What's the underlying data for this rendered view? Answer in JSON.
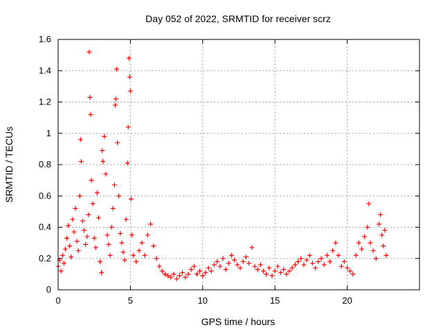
{
  "chart_data": {
    "type": "scatter",
    "title": "Day 052 of 2022, SRMTID for receiver scrz",
    "xlabel": "GPS time / hours",
    "ylabel": "SRMTID / TECUs",
    "xlim": [
      0,
      25
    ],
    "ylim": [
      0,
      1.6
    ],
    "xticks": [
      0,
      5,
      10,
      15,
      20
    ],
    "xtick_labels": [
      "0",
      "5",
      "10",
      "15",
      "20"
    ],
    "yticks": [
      0,
      0.2,
      0.4,
      0.6,
      0.8,
      1.0,
      1.2,
      1.4,
      1.6
    ],
    "ytick_labels": [
      "0",
      "0.2",
      "0.4",
      "0.6",
      "0.8",
      "1",
      "1.2",
      "1.4",
      "1.6"
    ],
    "grid": true,
    "marker": "+",
    "color": "#ff0000",
    "series": [
      {
        "name": "SRMTID",
        "points": [
          [
            0.0,
            0.15
          ],
          [
            0.1,
            0.19
          ],
          [
            0.2,
            0.12
          ],
          [
            0.3,
            0.22
          ],
          [
            0.4,
            0.17
          ],
          [
            0.5,
            0.26
          ],
          [
            0.6,
            0.33
          ],
          [
            0.7,
            0.41
          ],
          [
            0.8,
            0.28
          ],
          [
            0.9,
            0.21
          ],
          [
            1.0,
            0.45
          ],
          [
            1.1,
            0.37
          ],
          [
            1.2,
            0.52
          ],
          [
            1.3,
            0.31
          ],
          [
            1.4,
            0.25
          ],
          [
            1.5,
            0.6
          ],
          [
            1.55,
            0.96
          ],
          [
            1.6,
            0.82
          ],
          [
            1.7,
            0.44
          ],
          [
            1.8,
            0.38
          ],
          [
            1.9,
            0.29
          ],
          [
            2.0,
            0.34
          ],
          [
            2.1,
            0.48
          ],
          [
            2.15,
            1.52
          ],
          [
            2.2,
            1.23
          ],
          [
            2.25,
            1.12
          ],
          [
            2.3,
            0.7
          ],
          [
            2.4,
            0.55
          ],
          [
            2.5,
            0.33
          ],
          [
            2.6,
            0.27
          ],
          [
            2.7,
            0.62
          ],
          [
            2.8,
            0.46
          ],
          [
            2.9,
            0.18
          ],
          [
            3.0,
            0.11
          ],
          [
            3.05,
            0.89
          ],
          [
            3.1,
            0.82
          ],
          [
            3.2,
            0.98
          ],
          [
            3.3,
            0.74
          ],
          [
            3.4,
            0.35
          ],
          [
            3.5,
            0.29
          ],
          [
            3.6,
            0.22
          ],
          [
            3.7,
            0.4
          ],
          [
            3.8,
            0.52
          ],
          [
            3.9,
            0.67
          ],
          [
            3.95,
            1.18
          ],
          [
            4.0,
            1.22
          ],
          [
            4.05,
            1.41
          ],
          [
            4.1,
            0.94
          ],
          [
            4.2,
            0.6
          ],
          [
            4.3,
            0.36
          ],
          [
            4.4,
            0.3
          ],
          [
            4.5,
            0.24
          ],
          [
            4.6,
            0.19
          ],
          [
            4.7,
            0.45
          ],
          [
            4.8,
            0.81
          ],
          [
            4.85,
            1.04
          ],
          [
            4.9,
            1.48
          ],
          [
            4.95,
            1.36
          ],
          [
            5.0,
            1.27
          ],
          [
            5.05,
            0.58
          ],
          [
            5.1,
            0.35
          ],
          [
            5.2,
            0.22
          ],
          [
            5.4,
            0.18
          ],
          [
            5.6,
            0.25
          ],
          [
            5.8,
            0.3
          ],
          [
            6.0,
            0.22
          ],
          [
            6.2,
            0.35
          ],
          [
            6.4,
            0.42
          ],
          [
            6.6,
            0.28
          ],
          [
            6.8,
            0.2
          ],
          [
            7.0,
            0.15
          ],
          [
            7.2,
            0.12
          ],
          [
            7.4,
            0.1
          ],
          [
            7.6,
            0.09
          ],
          [
            7.8,
            0.08
          ],
          [
            8.0,
            0.1
          ],
          [
            8.2,
            0.07
          ],
          [
            8.4,
            0.09
          ],
          [
            8.6,
            0.11
          ],
          [
            8.8,
            0.08
          ],
          [
            9.0,
            0.1
          ],
          [
            9.2,
            0.13
          ],
          [
            9.4,
            0.15
          ],
          [
            9.6,
            0.1
          ],
          [
            9.8,
            0.12
          ],
          [
            10.0,
            0.09
          ],
          [
            10.2,
            0.11
          ],
          [
            10.4,
            0.14
          ],
          [
            10.6,
            0.12
          ],
          [
            10.8,
            0.16
          ],
          [
            11.0,
            0.18
          ],
          [
            11.2,
            0.15
          ],
          [
            11.4,
            0.2
          ],
          [
            11.6,
            0.13
          ],
          [
            11.8,
            0.17
          ],
          [
            12.0,
            0.22
          ],
          [
            12.2,
            0.19
          ],
          [
            12.4,
            0.16
          ],
          [
            12.6,
            0.14
          ],
          [
            12.8,
            0.18
          ],
          [
            13.0,
            0.21
          ],
          [
            13.2,
            0.17
          ],
          [
            13.4,
            0.27
          ],
          [
            13.6,
            0.15
          ],
          [
            13.8,
            0.13
          ],
          [
            14.0,
            0.16
          ],
          [
            14.2,
            0.12
          ],
          [
            14.4,
            0.1
          ],
          [
            14.6,
            0.14
          ],
          [
            14.8,
            0.09
          ],
          [
            15.0,
            0.12
          ],
          [
            15.2,
            0.15
          ],
          [
            15.4,
            0.11
          ],
          [
            15.6,
            0.13
          ],
          [
            15.8,
            0.1
          ],
          [
            16.0,
            0.12
          ],
          [
            16.2,
            0.14
          ],
          [
            16.4,
            0.16
          ],
          [
            16.6,
            0.18
          ],
          [
            16.8,
            0.2
          ],
          [
            17.0,
            0.16
          ],
          [
            17.2,
            0.19
          ],
          [
            17.4,
            0.22
          ],
          [
            17.6,
            0.17
          ],
          [
            17.8,
            0.14
          ],
          [
            18.0,
            0.18
          ],
          [
            18.2,
            0.2
          ],
          [
            18.4,
            0.16
          ],
          [
            18.6,
            0.22
          ],
          [
            18.8,
            0.18
          ],
          [
            19.0,
            0.25
          ],
          [
            19.2,
            0.3
          ],
          [
            19.4,
            0.22
          ],
          [
            19.6,
            0.15
          ],
          [
            19.8,
            0.18
          ],
          [
            20.0,
            0.14
          ],
          [
            20.2,
            0.12
          ],
          [
            20.4,
            0.1
          ],
          [
            20.6,
            0.22
          ],
          [
            20.8,
            0.3
          ],
          [
            21.0,
            0.26
          ],
          [
            21.2,
            0.34
          ],
          [
            21.4,
            0.4
          ],
          [
            21.5,
            0.55
          ],
          [
            21.6,
            0.3
          ],
          [
            21.8,
            0.25
          ],
          [
            22.0,
            0.2
          ],
          [
            22.2,
            0.42
          ],
          [
            22.3,
            0.48
          ],
          [
            22.4,
            0.35
          ],
          [
            22.5,
            0.28
          ],
          [
            22.6,
            0.38
          ],
          [
            22.7,
            0.22
          ]
        ]
      }
    ]
  }
}
